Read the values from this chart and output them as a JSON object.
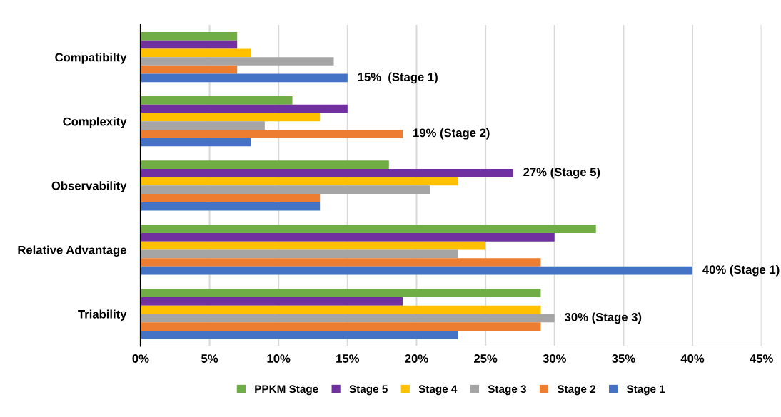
{
  "chart_data": {
    "type": "bar",
    "orientation": "horizontal",
    "categories": [
      "Compatibilty",
      "Complexity",
      "Observability",
      "Relative Advantage",
      "Triability"
    ],
    "series": [
      {
        "name": "PPKM Stage",
        "color": "#70ad47",
        "values": [
          7,
          11,
          18,
          33,
          29
        ]
      },
      {
        "name": "Stage 5",
        "color": "#7030a0",
        "values": [
          7,
          15,
          27,
          30,
          19
        ],
        "value_labels": [
          null,
          null,
          "27% (Stage 5)",
          null,
          null
        ]
      },
      {
        "name": "Stage 4",
        "color": "#ffc000",
        "values": [
          8,
          13,
          23,
          25,
          29
        ]
      },
      {
        "name": "Stage 3",
        "color": "#a5a5a5",
        "values": [
          14,
          9,
          21,
          23,
          30
        ],
        "value_labels": [
          null,
          null,
          null,
          null,
          "30% (Stage 3)"
        ]
      },
      {
        "name": "Stage 2",
        "color": "#ed7d31",
        "values": [
          7,
          19,
          13,
          29,
          29
        ],
        "value_labels": [
          null,
          "19% (Stage 2)",
          null,
          null,
          null
        ]
      },
      {
        "name": "Stage 1",
        "color": "#4472c4",
        "values": [
          15,
          8,
          13,
          40,
          23
        ],
        "value_labels": [
          "15%  (Stage 1)",
          null,
          null,
          "40% (Stage 1)",
          null
        ]
      }
    ],
    "xlim": [
      0,
      45
    ],
    "xticks": [
      {
        "value": 0,
        "label": "0%"
      },
      {
        "value": 5,
        "label": "5%"
      },
      {
        "value": 10,
        "label": "10%"
      },
      {
        "value": 15,
        "label": "15%"
      },
      {
        "value": 20,
        "label": "20%"
      },
      {
        "value": 25,
        "label": "25%"
      },
      {
        "value": 30,
        "label": "30%"
      },
      {
        "value": 35,
        "label": "35%"
      },
      {
        "value": 40,
        "label": "40%"
      },
      {
        "value": 45,
        "label": "45%"
      }
    ],
    "grid": "x",
    "legend": "bottom"
  }
}
